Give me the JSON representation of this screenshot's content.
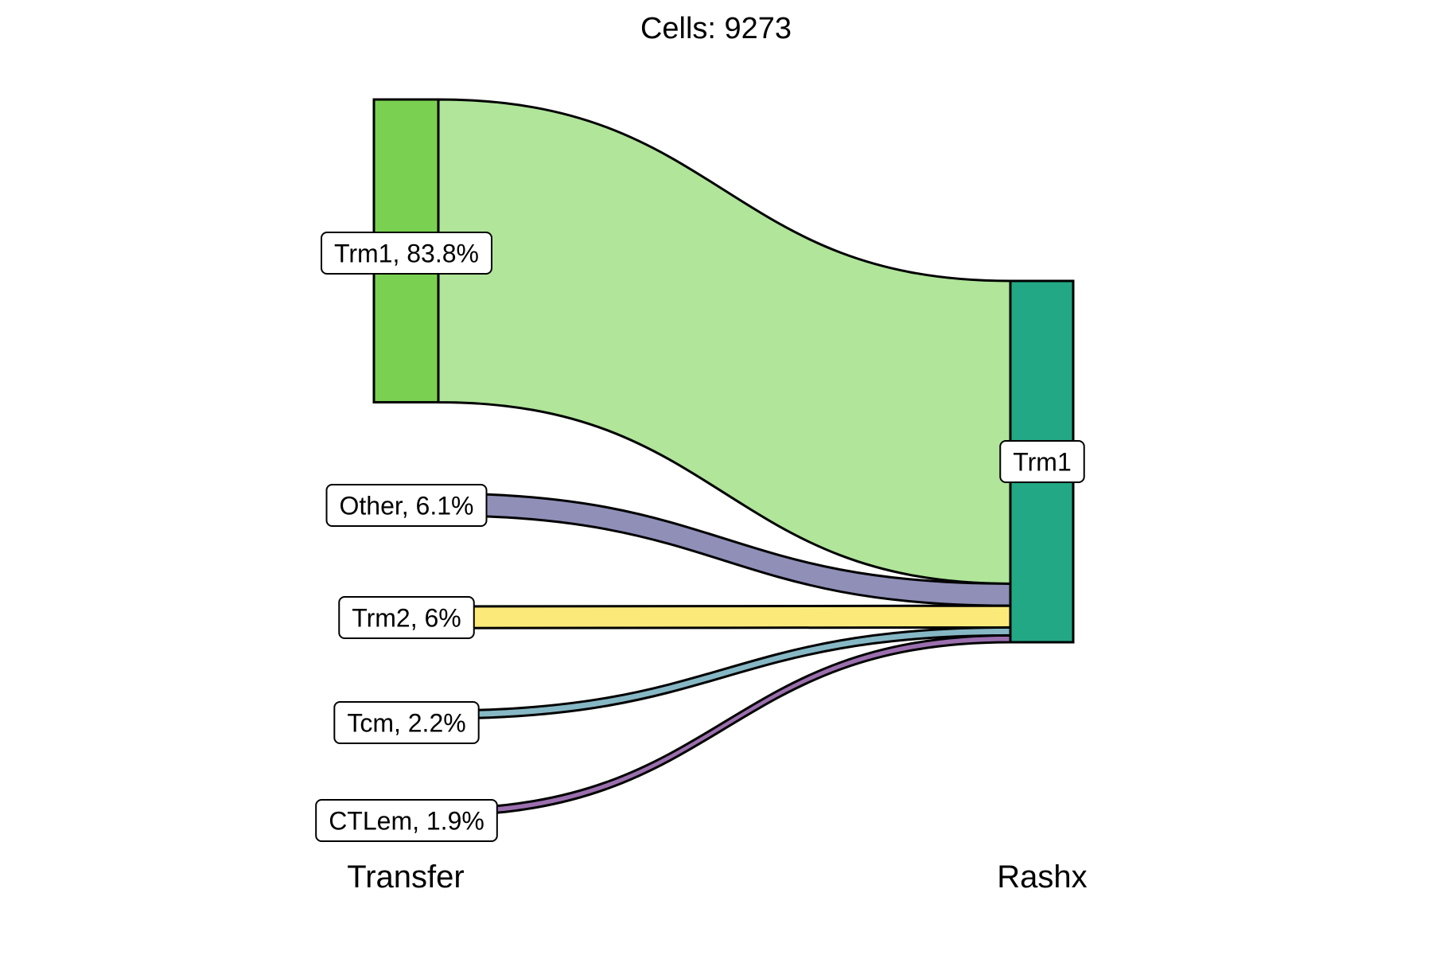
{
  "chart_data": {
    "type": "sankey",
    "title": "Cells:  9273",
    "axes": [
      "Transfer",
      "Rashx"
    ],
    "left_nodes": [
      {
        "label": "Trm1, 83.8%",
        "name": "Trm1",
        "percent": 83.8,
        "color": "#7ad151"
      },
      {
        "label": "Other, 6.1%",
        "name": "Other",
        "percent": 6.1,
        "color": "#8f8fb8"
      },
      {
        "label": "Trm2, 6%",
        "name": "Trm2",
        "percent": 6.0,
        "color": "#fde725"
      },
      {
        "label": "Tcm, 2.2%",
        "name": "Tcm",
        "percent": 2.2,
        "color": "#6aa8b8"
      },
      {
        "label": "CTLem, 1.9%",
        "name": "CTLem",
        "percent": 1.9,
        "color": "#8a5a9e"
      }
    ],
    "right_nodes": [
      {
        "label": "Trm1",
        "name": "Trm1",
        "color": "#22a884"
      }
    ],
    "flows": [
      {
        "from": "Trm1",
        "to": "Trm1",
        "percent": 83.8,
        "color": "#b0e59a"
      },
      {
        "from": "Other",
        "to": "Trm1",
        "percent": 6.1,
        "color": "#8f8fb8"
      },
      {
        "from": "Trm2",
        "to": "Trm1",
        "percent": 6.0,
        "color": "#fbea7a"
      },
      {
        "from": "Tcm",
        "to": "Trm1",
        "percent": 2.2,
        "color": "#86b7c4"
      },
      {
        "from": "CTLem",
        "to": "Trm1",
        "percent": 1.9,
        "color": "#9b6fae"
      }
    ]
  }
}
